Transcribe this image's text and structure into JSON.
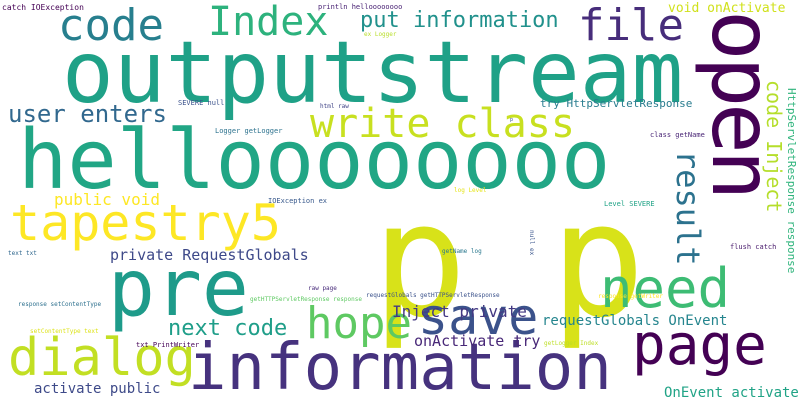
{
  "cloud": {
    "background": "#ffffff",
    "words": [
      {
        "text": "p p",
        "color": "#d8e219"
      },
      {
        "text": "outputstream",
        "color": "#1fa187"
      },
      {
        "text": "helloooooooo",
        "color": "#21a685"
      },
      {
        "text": "open",
        "color": "#440154"
      },
      {
        "text": "information",
        "color": "#46327e"
      },
      {
        "text": "pre",
        "color": "#1e9b8a"
      },
      {
        "text": "tapestry5",
        "color": "#fde725"
      },
      {
        "text": "code",
        "color": "#277f8e"
      },
      {
        "text": "Index",
        "color": "#2db27d"
      },
      {
        "text": "page",
        "color": "#440154"
      },
      {
        "text": "need",
        "color": "#3dbc74"
      },
      {
        "text": "file",
        "color": "#472d7b"
      },
      {
        "text": "dialog",
        "color": "#c2df23"
      },
      {
        "text": "write class",
        "color": "#c8e020"
      },
      {
        "text": "save",
        "color": "#3b528b"
      },
      {
        "text": "hope",
        "color": "#5ec962"
      },
      {
        "text": "result",
        "color": "#2c728e"
      },
      {
        "text": "put information",
        "color": "#21918c"
      },
      {
        "text": "user enters",
        "color": "#31688e"
      },
      {
        "text": "next code",
        "color": "#1f9e89"
      },
      {
        "text": "code Inject",
        "color": "#b5de2b"
      },
      {
        "text": "private RequestGlobals",
        "color": "#3e4989"
      },
      {
        "text": "public void",
        "color": "#fde725"
      },
      {
        "text": "Inject private",
        "color": "#443983"
      },
      {
        "text": "requestGlobals OnEvent",
        "color": "#25858e"
      },
      {
        "text": "onActivate try",
        "color": "#482878"
      },
      {
        "text": "activate public",
        "color": "#3e4a89"
      },
      {
        "text": "OnEvent activate",
        "color": "#20a386"
      },
      {
        "text": "void onActivate",
        "color": "#d0e11c"
      },
      {
        "text": "try HttpServletResponse",
        "color": "#287c8e"
      },
      {
        "text": "HttpServletResponse response",
        "color": "#2fb47c"
      },
      {
        "text": "catch IOException",
        "color": "#440154"
      },
      {
        "text": "println helloooooooo",
        "color": "#482173"
      },
      {
        "text": "ex Logger",
        "color": "#b8de29"
      },
      {
        "text": "SEVERE null",
        "color": "#3b528b"
      },
      {
        "text": "html raw",
        "color": "#414487"
      },
      {
        "text": "p",
        "color": "#3a548c"
      },
      {
        "text": "Logger getLogger",
        "color": "#2c728e"
      },
      {
        "text": "class getName",
        "color": "#482475"
      },
      {
        "text": "IOException ex",
        "color": "#38598c"
      },
      {
        "text": "log Level",
        "color": "#e5e419"
      },
      {
        "text": "Level SEVERE",
        "color": "#20a386"
      },
      {
        "text": "null ex",
        "color": "#39558c"
      },
      {
        "text": "getName log",
        "color": "#2a788e"
      },
      {
        "text": "flush catch",
        "color": "#481a6c"
      },
      {
        "text": "text txt",
        "color": "#31688e"
      },
      {
        "text": "raw page",
        "color": "#472a7a"
      },
      {
        "text": "requestGlobals getHTTPServletResponse",
        "color": "#3b528b"
      },
      {
        "text": "response getWriter",
        "color": "#fde725"
      },
      {
        "text": "getHTTPServletResponse response",
        "color": "#5ec962"
      },
      {
        "text": "response setContentType",
        "color": "#2d708e"
      },
      {
        "text": "setContentType text",
        "color": "#dde318"
      },
      {
        "text": "getLogger Index",
        "color": "#bddf26"
      },
      {
        "text": "txt PrintWriter",
        "color": "#440154"
      }
    ]
  }
}
